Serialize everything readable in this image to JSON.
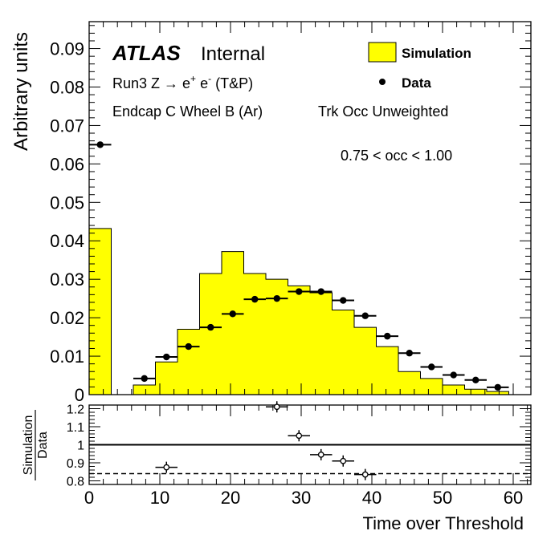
{
  "chart_data": [
    {
      "type": "bar",
      "panel": "main",
      "ylabel": "Arbitrary units",
      "ylim": [
        0,
        0.097
      ],
      "xlim": [
        0,
        62.5
      ],
      "yticks": [
        "0",
        "0.01",
        "0.02",
        "0.03",
        "0.04",
        "0.05",
        "0.06",
        "0.07",
        "0.08",
        "0.09"
      ],
      "experiment": "ATLAS",
      "status": "Internal",
      "info_lines": [
        "Run3 Z",
        "Endcap C Wheel B (Ar)",
        "Trk Occ Unweighted",
        "0.75 < occ < 1.00"
      ],
      "process_label": {
        "prefix": "Run3 Z ",
        "arrow": "→",
        "e1": " e",
        "sup1": "+",
        "e2": " e",
        "sup2": "-",
        "suffix": " (T&P)"
      },
      "legend": {
        "simulation": "Simulation",
        "data": "Data",
        "placement": "top-right"
      },
      "series": [
        {
          "name": "Simulation",
          "kind": "histogram",
          "color": "#ffff00",
          "edges": [
            0,
            3.125,
            6.25,
            9.375,
            12.5,
            15.625,
            18.75,
            21.875,
            25,
            28.125,
            31.25,
            34.375,
            37.5,
            40.625,
            43.75,
            46.875,
            50,
            53.125,
            56.25,
            59.375
          ],
          "values": [
            0.0432,
            0,
            0.0025,
            0.0085,
            0.017,
            0.0315,
            0.0372,
            0.0315,
            0.03,
            0.0283,
            0.0265,
            0.022,
            0.0175,
            0.0125,
            0.006,
            0.0042,
            0.0025,
            0.0014,
            0.0008
          ]
        },
        {
          "name": "Data",
          "kind": "points",
          "color": "#000000",
          "x": [
            1.5625,
            7.8125,
            10.9375,
            14.0625,
            17.1875,
            20.3125,
            23.4375,
            26.5625,
            29.6875,
            32.8125,
            35.9375,
            39.0625,
            42.1875,
            45.3125,
            48.4375,
            51.5625,
            54.6875,
            57.8125
          ],
          "y": [
            0.065,
            0.0042,
            0.0098,
            0.0125,
            0.0175,
            0.021,
            0.0248,
            0.025,
            0.0268,
            0.0268,
            0.0245,
            0.0205,
            0.0152,
            0.0108,
            0.0072,
            0.0051,
            0.0038,
            0.0019
          ]
        }
      ]
    },
    {
      "type": "scatter",
      "panel": "ratio",
      "ylabel_num": "Simulation",
      "ylabel_den": "Data",
      "xlabel": "Time over Threshold",
      "xlim": [
        0,
        62.5
      ],
      "ylim": [
        0.78,
        1.22
      ],
      "xticks": [
        "0",
        "10",
        "20",
        "30",
        "40",
        "50",
        "60"
      ],
      "yticks": [
        "0.8",
        "0.9",
        "1",
        "1.1",
        "1.2"
      ],
      "reference_lines": [
        1.0,
        0.84
      ],
      "series": [
        {
          "name": "Simulation/Data",
          "x": [
            10.9375,
            26.5625,
            29.6875,
            32.8125,
            35.9375,
            39.0625
          ],
          "y": [
            0.875,
            1.21,
            1.05,
            0.945,
            0.91,
            0.835
          ]
        }
      ]
    }
  ]
}
